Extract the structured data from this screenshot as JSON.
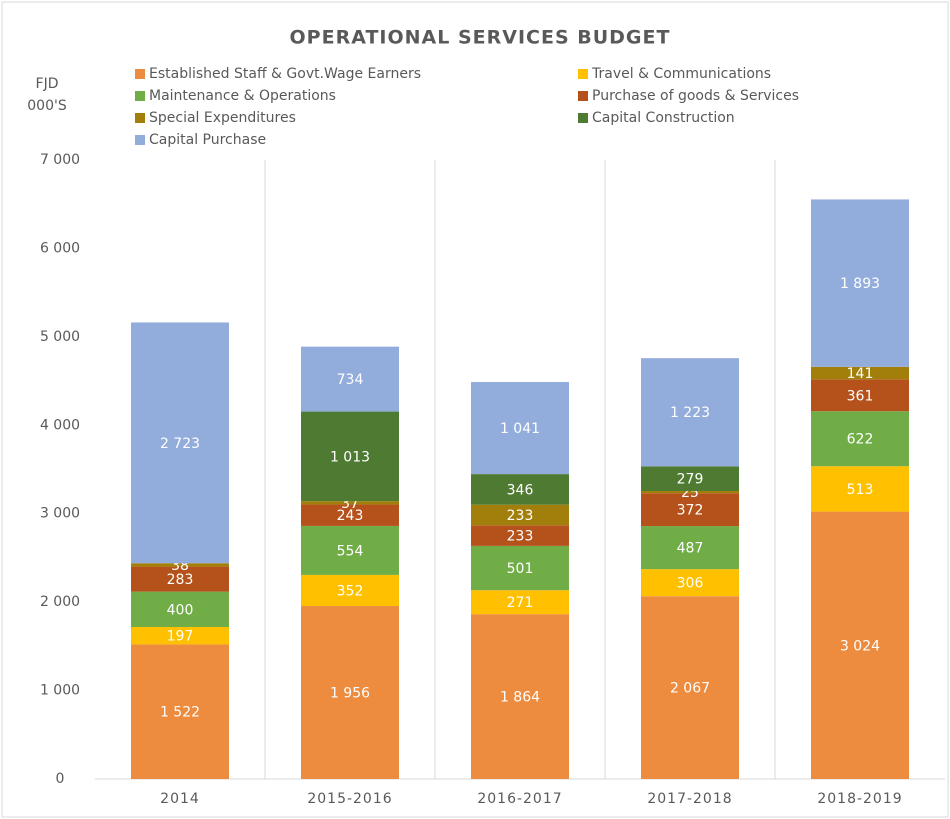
{
  "chart_data": {
    "type": "stacked_bar",
    "title": "OPERATIONAL SERVICES BUDGET",
    "ylabel_lines": [
      "FJD",
      "000'S"
    ],
    "categories": [
      "2014",
      "2015-2016",
      "2016-2017",
      "2017-2018",
      "2018-2019"
    ],
    "series": [
      {
        "name": "Established Staff & Govt.Wage Earners",
        "color": "#ed8b3e",
        "values": [
          1522,
          1956,
          1864,
          2067,
          3024
        ],
        "value_labels": [
          "1 522",
          "1 956",
          "1 864",
          "2 067",
          "3 024"
        ]
      },
      {
        "name": "Travel & Communications",
        "color": "#ffc000",
        "values": [
          197,
          352,
          271,
          306,
          513
        ],
        "value_labels": [
          "197",
          "352",
          "271",
          "306",
          "513"
        ]
      },
      {
        "name": "Maintenance & Operations",
        "color": "#70ad47",
        "values": [
          400,
          554,
          501,
          487,
          622
        ],
        "value_labels": [
          "400",
          "554",
          "501",
          "487",
          "622"
        ]
      },
      {
        "name": "Purchase of goods & Services",
        "color": "#b5521b",
        "values": [
          283,
          243,
          233,
          372,
          361
        ],
        "value_labels": [
          "283",
          "243",
          "233",
          "372",
          "361"
        ]
      },
      {
        "name": "Special Expenditures",
        "color": "#a27f0a",
        "values": [
          38,
          37,
          233,
          25,
          141
        ],
        "value_labels": [
          "38",
          "37",
          "233",
          "25",
          "141"
        ]
      },
      {
        "name": "Capital Construction",
        "color": "#4f7a32",
        "values": [
          null,
          1013,
          346,
          279,
          null
        ],
        "value_labels": [
          null,
          "1 013",
          "346",
          "279",
          null
        ]
      },
      {
        "name": "Capital Purchase",
        "color": "#92acdc",
        "values": [
          2723,
          734,
          1041,
          1223,
          1893
        ],
        "value_labels": [
          "2 723",
          "734",
          "1 041",
          "1 223",
          "1 893"
        ]
      }
    ],
    "ylim": [
      0,
      7000
    ],
    "yticks": [
      0,
      {
        "value": 1000,
        "label": "1 000"
      },
      {
        "value": 2000,
        "label": "2 000"
      },
      {
        "value": 3000,
        "label": "3 000"
      },
      {
        "value": 4000,
        "label": "4 000"
      },
      {
        "value": 5000,
        "label": "5 000"
      },
      {
        "value": 6000,
        "label": "6 000"
      },
      {
        "value": 7000,
        "label": "7 000"
      }
    ],
    "legend": "top"
  }
}
